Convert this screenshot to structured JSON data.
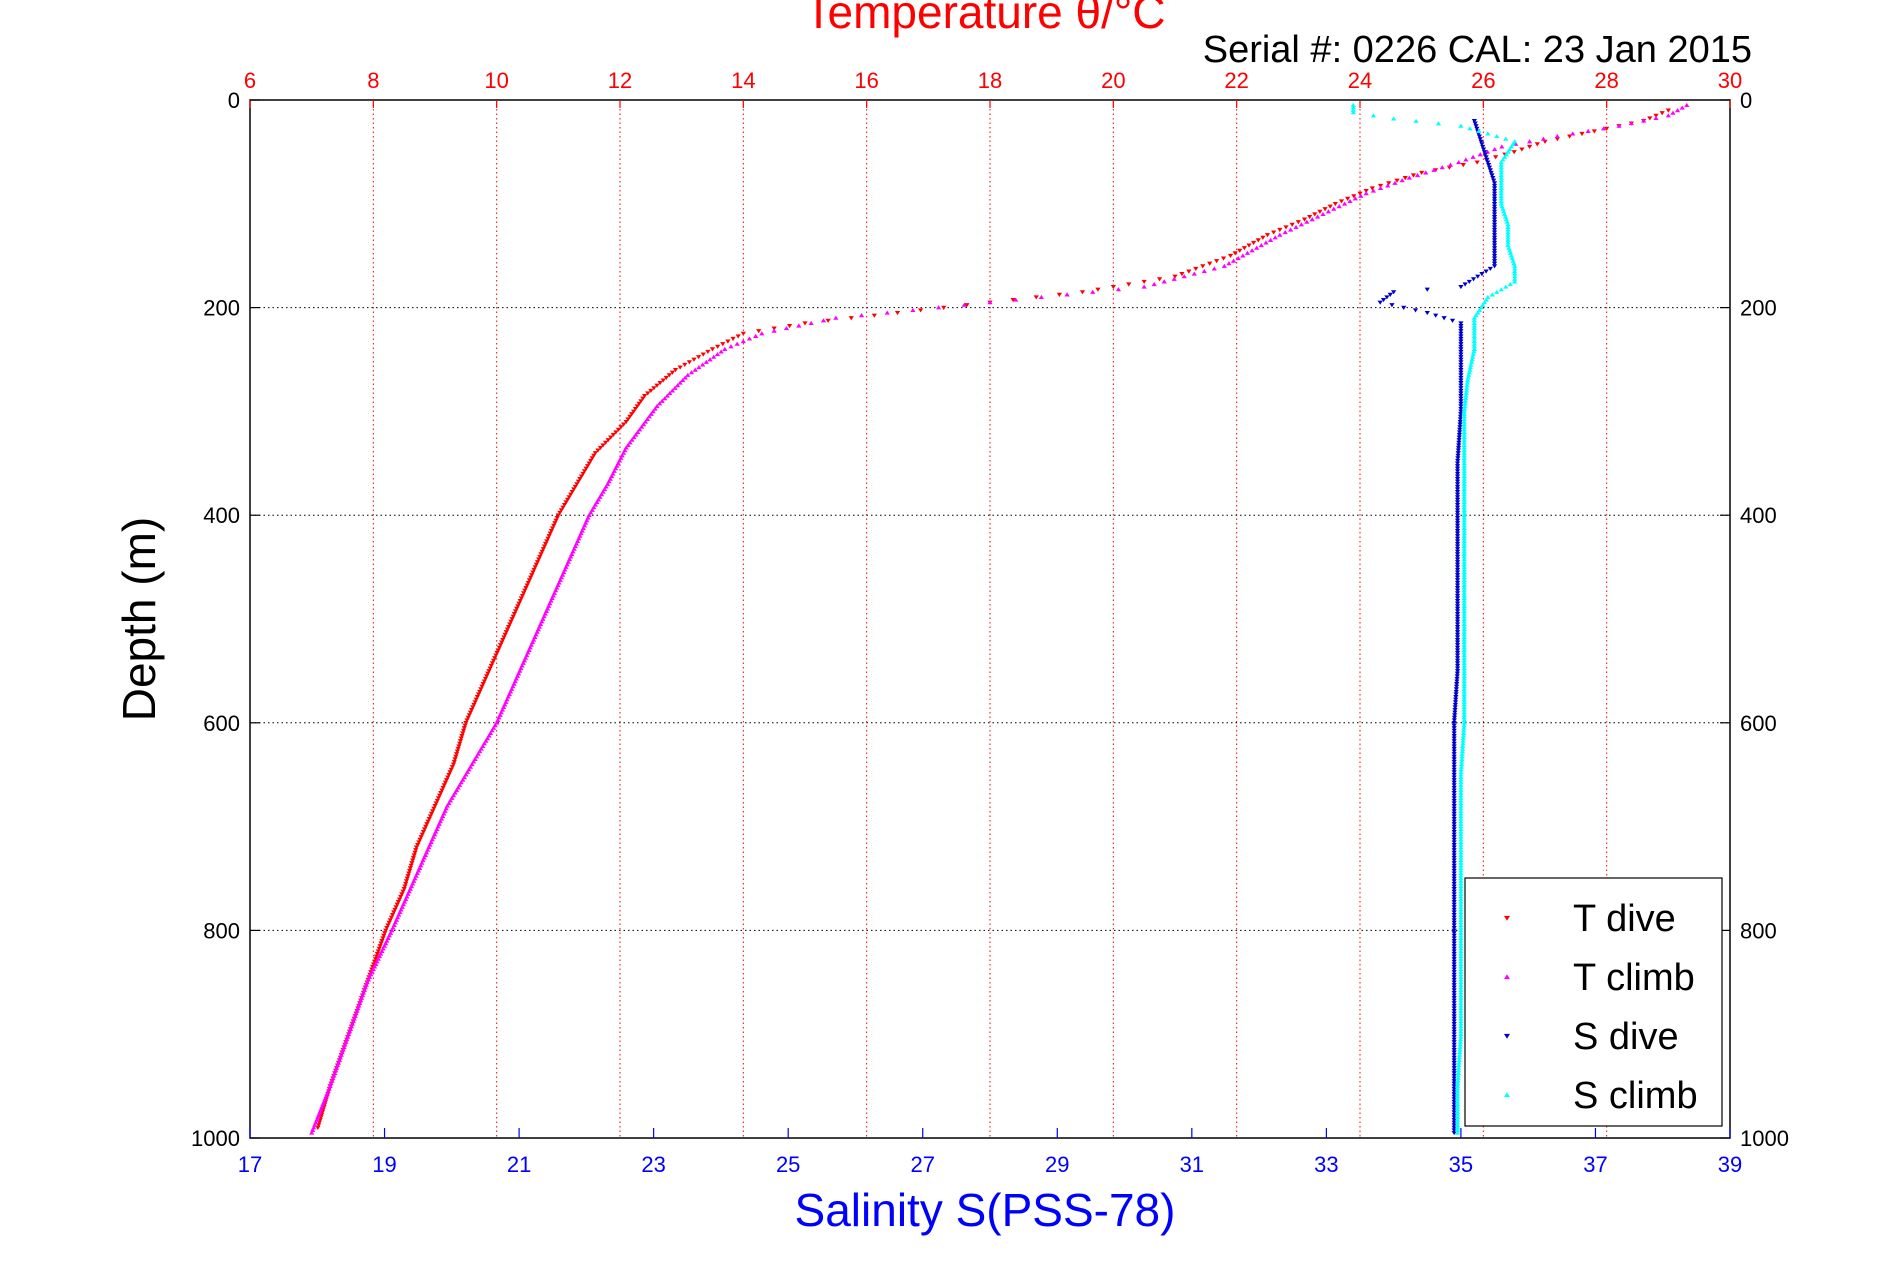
{
  "page": {
    "serial_label": "Serial #: 0226  CAL: 23 Jan 2015"
  },
  "colors": {
    "temperature_axis": "#ff0000",
    "salinity_axis": "#0000ff",
    "t_dive": "#ff0000",
    "t_climb": "#ff00ff",
    "s_dive": "#0000cc",
    "s_climb": "#00ffff",
    "grid_temperature": "#ff0000",
    "grid_depth": "#000000",
    "axes": "#000000"
  },
  "chart_data": {
    "type": "scatter",
    "title": "Temperature θ/°C",
    "xlabel_top": "Temperature θ/°C",
    "xlabel_bottom": "Salinity S(PSS-78)",
    "ylabel": "Depth (m)",
    "y_reversed": true,
    "grid": true,
    "legend_position": "bottom-right",
    "ylim": [
      0,
      1000
    ],
    "yticks": [
      "0",
      "200",
      "400",
      "600",
      "800",
      "1000"
    ],
    "temperature_xlim": [
      6,
      30
    ],
    "temperature_ticks": [
      "6",
      "8",
      "10",
      "12",
      "14",
      "16",
      "18",
      "20",
      "22",
      "24",
      "26",
      "28",
      "30"
    ],
    "salinity_xlim": [
      17,
      39
    ],
    "salinity_ticks": [
      "17",
      "19",
      "21",
      "23",
      "25",
      "27",
      "29",
      "31",
      "33",
      "35",
      "37",
      "39"
    ],
    "series": [
      {
        "name": "T dive",
        "marker": "triangle-down",
        "axis": "temperature",
        "points": [
          [
            29.0,
            10
          ],
          [
            28.6,
            20
          ],
          [
            27.8,
            30
          ],
          [
            27.0,
            40
          ],
          [
            26.5,
            50
          ],
          [
            25.9,
            60
          ],
          [
            25.0,
            70
          ],
          [
            24.2,
            85
          ],
          [
            23.6,
            100
          ],
          [
            23.1,
            115
          ],
          [
            22.5,
            130
          ],
          [
            21.9,
            150
          ],
          [
            21.0,
            170
          ],
          [
            19.5,
            185
          ],
          [
            16.5,
            205
          ],
          [
            15.0,
            215
          ],
          [
            14.0,
            225
          ],
          [
            13.5,
            240
          ],
          [
            12.9,
            260
          ],
          [
            12.4,
            285
          ],
          [
            12.1,
            310
          ],
          [
            11.6,
            340
          ],
          [
            11.3,
            370
          ],
          [
            11.0,
            400
          ],
          [
            10.7,
            440
          ],
          [
            10.4,
            480
          ],
          [
            10.1,
            520
          ],
          [
            9.8,
            560
          ],
          [
            9.5,
            600
          ],
          [
            9.3,
            640
          ],
          [
            9.0,
            680
          ],
          [
            8.7,
            720
          ],
          [
            8.5,
            760
          ],
          [
            8.2,
            800
          ],
          [
            7.9,
            850
          ],
          [
            7.6,
            900
          ],
          [
            7.3,
            950
          ],
          [
            7.1,
            990
          ]
        ]
      },
      {
        "name": "T climb",
        "marker": "triangle-up",
        "axis": "temperature",
        "points": [
          [
            29.3,
            5
          ],
          [
            29.0,
            15
          ],
          [
            28.2,
            25
          ],
          [
            27.2,
            35
          ],
          [
            26.3,
            45
          ],
          [
            25.6,
            60
          ],
          [
            24.8,
            75
          ],
          [
            24.1,
            90
          ],
          [
            23.4,
            110
          ],
          [
            22.7,
            130
          ],
          [
            21.8,
            160
          ],
          [
            20.5,
            180
          ],
          [
            18.0,
            195
          ],
          [
            15.5,
            210
          ],
          [
            14.3,
            225
          ],
          [
            13.7,
            240
          ],
          [
            13.1,
            265
          ],
          [
            12.6,
            295
          ],
          [
            12.1,
            335
          ],
          [
            11.8,
            370
          ],
          [
            11.5,
            400
          ],
          [
            11.2,
            440
          ],
          [
            10.9,
            480
          ],
          [
            10.6,
            520
          ],
          [
            10.3,
            560
          ],
          [
            10.0,
            600
          ],
          [
            9.6,
            640
          ],
          [
            9.2,
            680
          ],
          [
            8.9,
            720
          ],
          [
            8.6,
            760
          ],
          [
            8.3,
            800
          ],
          [
            7.9,
            850
          ],
          [
            7.6,
            900
          ],
          [
            7.3,
            950
          ],
          [
            7.0,
            995
          ]
        ]
      },
      {
        "name": "S dive",
        "marker": "triangle-down",
        "axis": "salinity",
        "points": [
          [
            35.2,
            20
          ],
          [
            35.3,
            40
          ],
          [
            35.4,
            60
          ],
          [
            35.5,
            80
          ],
          [
            35.5,
            100
          ],
          [
            35.5,
            120
          ],
          [
            35.5,
            140
          ],
          [
            35.5,
            160
          ],
          [
            35.0,
            180
          ],
          [
            34.0,
            185
          ],
          [
            33.8,
            195
          ],
          [
            34.5,
            205
          ],
          [
            35.0,
            215
          ],
          [
            35.0,
            240
          ],
          [
            35.0,
            270
          ],
          [
            35.0,
            300
          ],
          [
            34.95,
            350
          ],
          [
            34.95,
            400
          ],
          [
            34.95,
            450
          ],
          [
            34.95,
            500
          ],
          [
            34.95,
            550
          ],
          [
            34.9,
            600
          ],
          [
            34.9,
            650
          ],
          [
            34.9,
            700
          ],
          [
            34.9,
            750
          ],
          [
            34.9,
            800
          ],
          [
            34.9,
            850
          ],
          [
            34.9,
            900
          ],
          [
            34.9,
            950
          ],
          [
            34.9,
            995
          ]
        ]
      },
      {
        "name": "S climb",
        "marker": "triangle-up",
        "axis": "salinity",
        "points": [
          [
            33.4,
            5
          ],
          [
            33.4,
            12
          ],
          [
            34.0,
            18
          ],
          [
            35.0,
            25
          ],
          [
            35.8,
            40
          ],
          [
            35.6,
            60
          ],
          [
            35.6,
            80
          ],
          [
            35.6,
            100
          ],
          [
            35.7,
            120
          ],
          [
            35.7,
            140
          ],
          [
            35.8,
            160
          ],
          [
            35.8,
            175
          ],
          [
            35.4,
            190
          ],
          [
            35.2,
            210
          ],
          [
            35.2,
            240
          ],
          [
            35.1,
            270
          ],
          [
            35.05,
            300
          ],
          [
            35.05,
            350
          ],
          [
            35.05,
            400
          ],
          [
            35.05,
            450
          ],
          [
            35.05,
            500
          ],
          [
            35.05,
            550
          ],
          [
            35.05,
            600
          ],
          [
            35.0,
            650
          ],
          [
            35.0,
            700
          ],
          [
            35.0,
            750
          ],
          [
            35.0,
            800
          ],
          [
            35.0,
            850
          ],
          [
            35.0,
            900
          ],
          [
            34.95,
            950
          ],
          [
            34.95,
            995
          ]
        ]
      }
    ]
  }
}
